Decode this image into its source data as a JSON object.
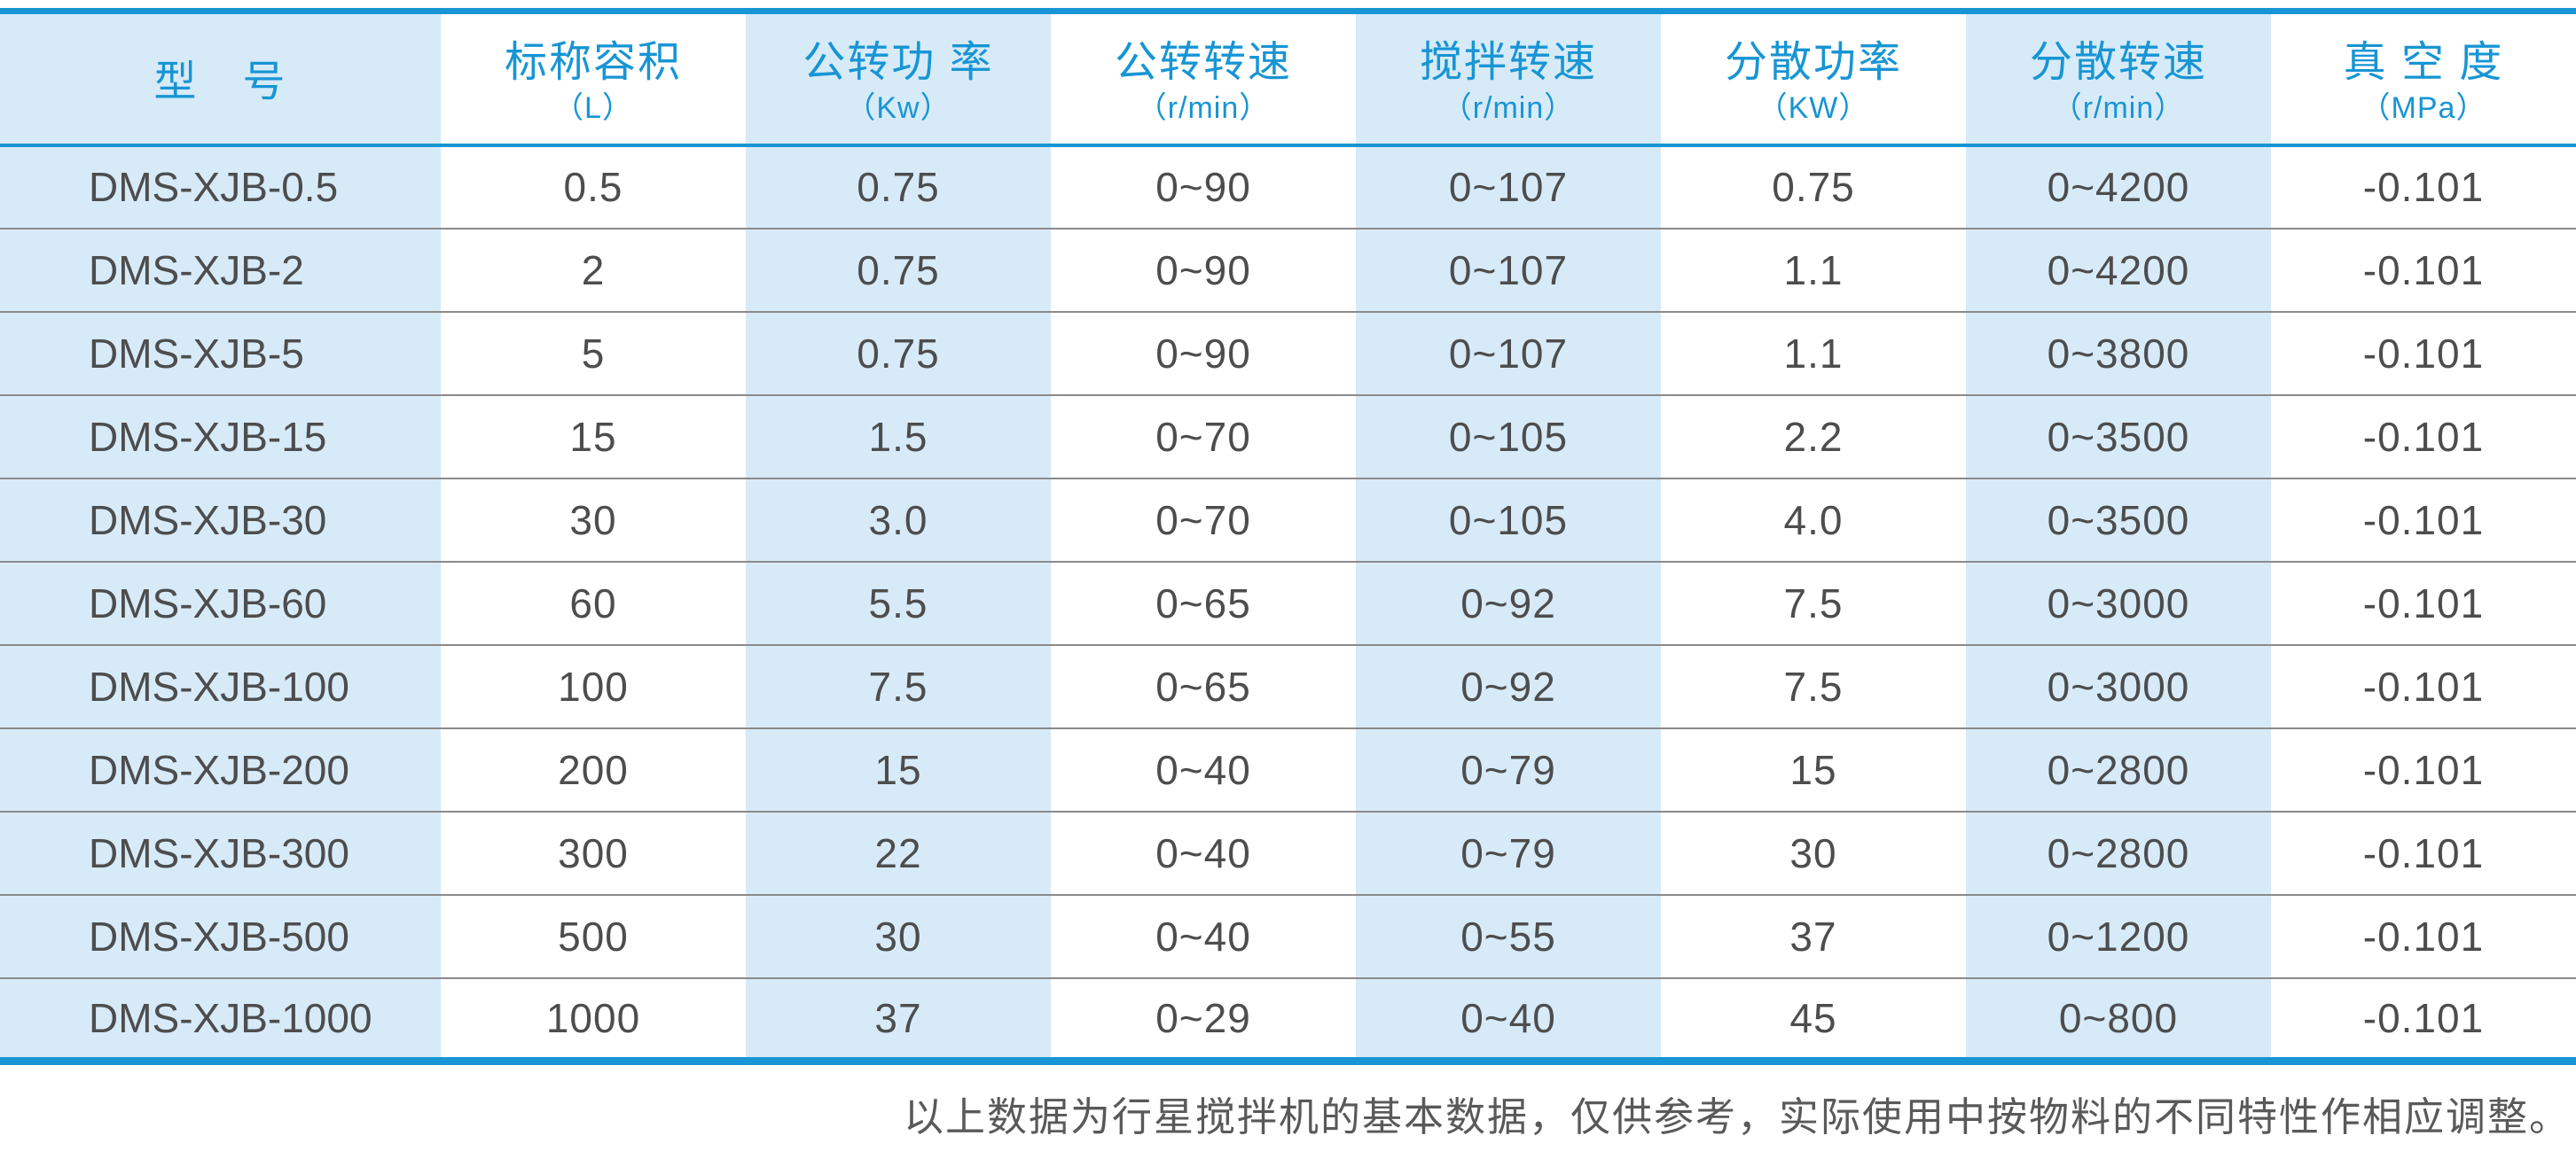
{
  "colors": {
    "accent": "#1795d4",
    "band": "#d7eaf8",
    "cell_text": "#4d4d4d",
    "row_line": "#8a8a8a",
    "footnote_text": "#595959"
  },
  "table": {
    "columns": [
      {
        "title": "型　号",
        "unit": "",
        "shaded": true
      },
      {
        "title": "标称容积",
        "unit": "（L）",
        "shaded": false
      },
      {
        "title": "公转功 率",
        "unit": "（Kw）",
        "shaded": true
      },
      {
        "title": "公转转速",
        "unit": "（r/min）",
        "shaded": false
      },
      {
        "title": "搅拌转速",
        "unit": "（r/min）",
        "shaded": true
      },
      {
        "title": "分散功率",
        "unit": "（KW）",
        "shaded": false
      },
      {
        "title": "分散转速",
        "unit": "（r/min）",
        "shaded": true
      },
      {
        "title": "真 空 度",
        "unit": "（MPa）",
        "shaded": false
      }
    ],
    "rows": [
      [
        "DMS-XJB-0.5",
        "0.5",
        "0.75",
        "0~90",
        "0~107",
        "0.75",
        "0~4200",
        "-0.101"
      ],
      [
        "DMS-XJB-2",
        "2",
        "0.75",
        "0~90",
        "0~107",
        "1.1",
        "0~4200",
        "-0.101"
      ],
      [
        "DMS-XJB-5",
        "5",
        "0.75",
        "0~90",
        "0~107",
        "1.1",
        "0~3800",
        "-0.101"
      ],
      [
        "DMS-XJB-15",
        "15",
        "1.5",
        "0~70",
        "0~105",
        "2.2",
        "0~3500",
        "-0.101"
      ],
      [
        "DMS-XJB-30",
        "30",
        "3.0",
        "0~70",
        "0~105",
        "4.0",
        "0~3500",
        "-0.101"
      ],
      [
        "DMS-XJB-60",
        "60",
        "5.5",
        "0~65",
        "0~92",
        "7.5",
        "0~3000",
        "-0.101"
      ],
      [
        "DMS-XJB-100",
        "100",
        "7.5",
        "0~65",
        "0~92",
        "7.5",
        "0~3000",
        "-0.101"
      ],
      [
        "DMS-XJB-200",
        "200",
        "15",
        "0~40",
        "0~79",
        "15",
        "0~2800",
        "-0.101"
      ],
      [
        "DMS-XJB-300",
        "300",
        "22",
        "0~40",
        "0~79",
        "30",
        "0~2800",
        "-0.101"
      ],
      [
        "DMS-XJB-500",
        "500",
        "30",
        "0~40",
        "0~55",
        "37",
        "0~1200",
        "-0.101"
      ],
      [
        "DMS-XJB-1000",
        "1000",
        "37",
        "0~29",
        "0~40",
        "45",
        "0~800",
        "-0.101"
      ]
    ]
  },
  "footnote": "以上数据为行星搅拌机的基本数据，仅供参考，实际使用中按物料的不同特性作相应调整。"
}
